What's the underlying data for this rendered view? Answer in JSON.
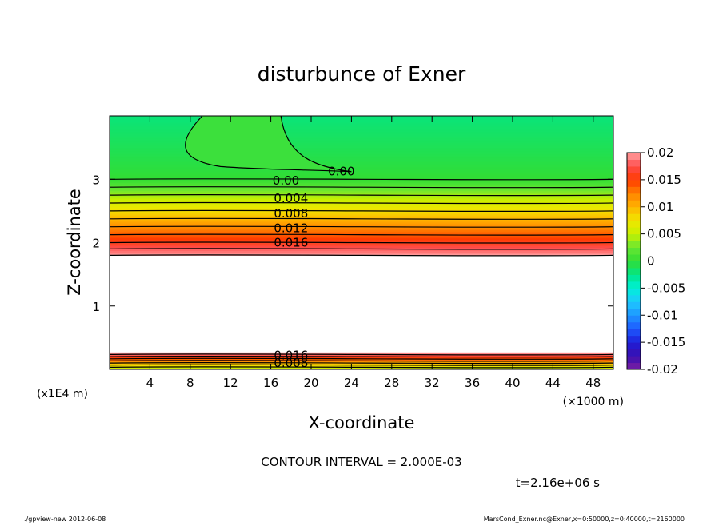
{
  "chart_data": {
    "type": "heatmap",
    "title": "disturbunce of Exner",
    "xlabel": "X-coordinate",
    "ylabel": "Z-coordinate",
    "x_unit": "(×1000 m)",
    "y_unit": "(x1E4 m)",
    "xlim": [
      0,
      50
    ],
    "ylim": [
      0,
      4
    ],
    "x_ticks": [
      4,
      8,
      12,
      16,
      20,
      24,
      28,
      32,
      36,
      40,
      44,
      48
    ],
    "y_ticks": [
      1,
      2,
      3
    ],
    "colorbar": {
      "min": -0.02,
      "max": 0.02,
      "step": 0.002,
      "tick_labels": [
        "0.02",
        "0.015",
        "0.01",
        "0.005",
        "0",
        "-0.005",
        "-0.01",
        "-0.015",
        "-0.02"
      ],
      "tick_values": [
        0.02,
        0.015,
        0.01,
        0.005,
        0,
        -0.005,
        -0.01,
        -0.015,
        -0.02
      ]
    },
    "field_profile": [
      {
        "z": 0.0,
        "value": 0.004
      },
      {
        "z": 0.1,
        "value": 0.01
      },
      {
        "z": 0.2,
        "value": 0.016
      },
      {
        "z": 0.27,
        "value": 0.02
      },
      {
        "z": 1.8,
        "value": 0.02
      },
      {
        "z": 2.0,
        "value": 0.016
      },
      {
        "z": 2.25,
        "value": 0.012
      },
      {
        "z": 2.5,
        "value": 0.008
      },
      {
        "z": 2.75,
        "value": 0.004
      },
      {
        "z": 3.0,
        "value": 0.0
      },
      {
        "z": 4.0,
        "value": -0.002
      }
    ],
    "contour_labels": [
      {
        "text": "0.00",
        "x": 23,
        "y": 3.12
      },
      {
        "text": "0.00",
        "x": 17.5,
        "y": 2.98
      },
      {
        "text": "0.004",
        "x": 18,
        "y": 2.7
      },
      {
        "text": "0.008",
        "x": 18,
        "y": 2.46
      },
      {
        "text": "0.012",
        "x": 18,
        "y": 2.23
      },
      {
        "text": "0.016",
        "x": 18,
        "y": 2.0
      },
      {
        "text": "0.016",
        "x": 18,
        "y": 0.22
      },
      {
        "text": "0.008",
        "x": 18,
        "y": 0.1
      }
    ],
    "contour_interval": "CONTOUR INTERVAL = 2.000E-03",
    "time": "t=2.16e+06 s"
  },
  "footer": {
    "left": "./gpview-new  2012-06-08",
    "right": "MarsCond_Exner.nc@Exner,x=0:50000,z=0:40000,t=2160000"
  }
}
